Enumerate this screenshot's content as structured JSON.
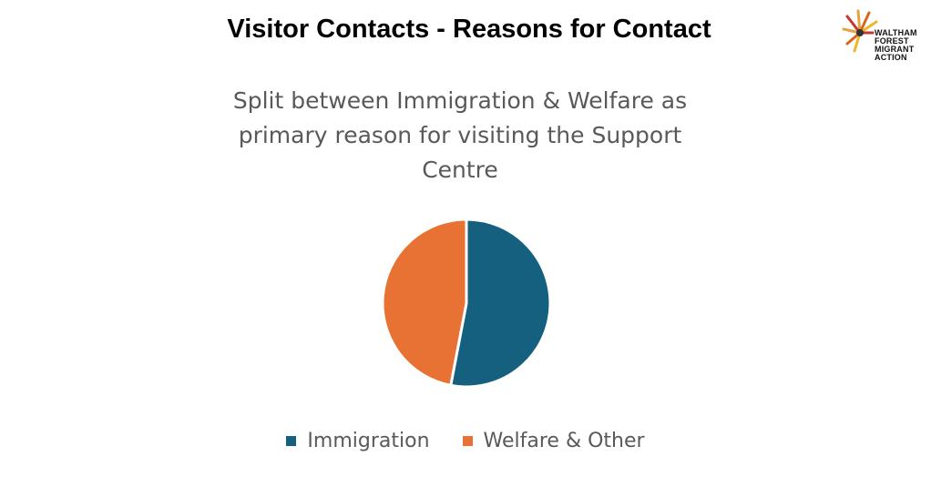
{
  "page": {
    "title": "Visitor Contacts - Reasons for Contact"
  },
  "logo": {
    "lines": [
      "WALTHAM",
      "FOREST",
      "MIGRANT",
      "ACTION"
    ]
  },
  "colors": {
    "immigration": "#16607f",
    "welfare": "#e87233",
    "title_text": "#595959"
  },
  "chart_data": {
    "type": "pie",
    "title": "Split between Immigration & Welfare as primary reason for visiting the Support Centre",
    "categories": [
      "Immigration",
      "Welfare & Other"
    ],
    "values": [
      53,
      47
    ],
    "legend_position": "bottom"
  }
}
